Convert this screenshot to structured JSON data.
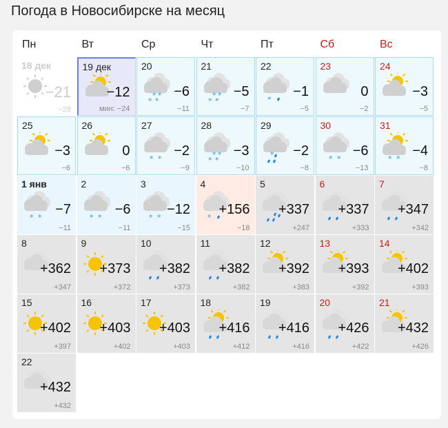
{
  "title": "Погода в Новосибирске на месяц",
  "weekdays": [
    {
      "label": "Пн",
      "weekend": false
    },
    {
      "label": "Вт",
      "weekend": false
    },
    {
      "label": "Ср",
      "weekend": false
    },
    {
      "label": "Чт",
      "weekend": false
    },
    {
      "label": "Пт",
      "weekend": false
    },
    {
      "label": "Сб",
      "weekend": true
    },
    {
      "label": "Вс",
      "weekend": true
    }
  ],
  "colors": {
    "weekend": "#c81c1c",
    "sun": "#f6c400",
    "snow": "#2e9df0",
    "rain": "#1e88e5",
    "cloud": "#d0d0d0"
  },
  "days": [
    {
      "day": "18 дек",
      "icon": "sun",
      "precip": "",
      "temp": "−21",
      "min": "−28",
      "style": "past"
    },
    {
      "day": "19 дек",
      "icon": "suncloud",
      "precip": "",
      "temp": "−12",
      "min": "мин: −24",
      "style": "today"
    },
    {
      "day": "20",
      "icon": "cloud",
      "precip": "snow4",
      "temp": "−6",
      "min": "−11",
      "style": "blue"
    },
    {
      "day": "21",
      "icon": "cloud",
      "precip": "snow4",
      "temp": "−5",
      "min": "−7",
      "style": "blue"
    },
    {
      "day": "22",
      "icon": "cloud",
      "precip": "mix",
      "temp": "−1",
      "min": "−5",
      "style": "blue"
    },
    {
      "day": "23",
      "icon": "cloud",
      "precip": "",
      "temp": "0",
      "min": "−2",
      "style": "blue",
      "weekend": true
    },
    {
      "day": "24",
      "icon": "suncloud",
      "precip": "",
      "temp": "−3",
      "min": "−5",
      "style": "blue",
      "weekend": true
    },
    {
      "day": "25",
      "icon": "suncloud",
      "precip": "",
      "temp": "−3",
      "min": "−6",
      "style": "blue"
    },
    {
      "day": "26",
      "icon": "suncloud",
      "precip": "",
      "temp": "0",
      "min": "−6",
      "style": "blue"
    },
    {
      "day": "27",
      "icon": "cloud",
      "precip": "snow2",
      "temp": "−2",
      "min": "−9",
      "style": "blue"
    },
    {
      "day": "28",
      "icon": "cloud",
      "precip": "snow4",
      "temp": "−3",
      "min": "−10",
      "style": "blue"
    },
    {
      "day": "29",
      "icon": "cloud",
      "precip": "mix3",
      "temp": "−2",
      "min": "−8",
      "style": "blue"
    },
    {
      "day": "30",
      "icon": "cloud",
      "precip": "snow2",
      "temp": "−6",
      "min": "−13",
      "style": "blue",
      "weekend": true
    },
    {
      "day": "31",
      "icon": "suncloud",
      "precip": "snow2",
      "temp": "−4",
      "min": "−8",
      "style": "blue",
      "weekend": true
    },
    {
      "day": "1 янв",
      "icon": "cloud",
      "precip": "snow2",
      "temp": "−7",
      "min": "−11",
      "style": "lblue",
      "bold": true
    },
    {
      "day": "2",
      "icon": "cloud",
      "precip": "snow2",
      "temp": "−6",
      "min": "−11",
      "style": "lblue"
    },
    {
      "day": "3",
      "icon": "cloud",
      "precip": "snow2",
      "temp": "−12",
      "min": "−15",
      "style": "lblue"
    },
    {
      "day": "4",
      "icon": "cloud",
      "precip": "mix",
      "temp": "+156",
      "min": "−18",
      "style": "peach"
    },
    {
      "day": "5",
      "icon": "cloud",
      "precip": "rain3",
      "temp": "+337",
      "min": "+247",
      "style": "gray"
    },
    {
      "day": "6",
      "icon": "cloud",
      "precip": "rain2",
      "temp": "+337",
      "min": "+333",
      "style": "gray",
      "weekend": true
    },
    {
      "day": "7",
      "icon": "cloud",
      "precip": "rain2",
      "temp": "+347",
      "min": "+342",
      "style": "gray",
      "weekend": true
    },
    {
      "day": "8",
      "icon": "cloud",
      "precip": "",
      "temp": "+362",
      "min": "+347",
      "style": "gray"
    },
    {
      "day": "9",
      "icon": "sun",
      "precip": "",
      "temp": "+373",
      "min": "+372",
      "style": "gray"
    },
    {
      "day": "10",
      "icon": "cloud",
      "precip": "rain2",
      "temp": "+382",
      "min": "+373",
      "style": "gray"
    },
    {
      "day": "11",
      "icon": "cloud",
      "precip": "rain2",
      "temp": "+382",
      "min": "+382",
      "style": "gray"
    },
    {
      "day": "12",
      "icon": "suncloud",
      "precip": "",
      "temp": "+392",
      "min": "+383",
      "style": "gray"
    },
    {
      "day": "13",
      "icon": "suncloud",
      "precip": "",
      "temp": "+393",
      "min": "+392",
      "style": "gray",
      "weekend": true
    },
    {
      "day": "14",
      "icon": "suncloud",
      "precip": "",
      "temp": "+402",
      "min": "+393",
      "style": "gray",
      "weekend": true
    },
    {
      "day": "15",
      "icon": "sun",
      "precip": "",
      "temp": "+402",
      "min": "+397",
      "style": "gray"
    },
    {
      "day": "16",
      "icon": "sun",
      "precip": "",
      "temp": "+403",
      "min": "+402",
      "style": "gray"
    },
    {
      "day": "17",
      "icon": "sun",
      "precip": "",
      "temp": "+403",
      "min": "+403",
      "style": "gray"
    },
    {
      "day": "18",
      "icon": "suncloud",
      "precip": "rain2",
      "temp": "+416",
      "min": "+412",
      "style": "gray"
    },
    {
      "day": "19",
      "icon": "cloud",
      "precip": "rain2",
      "temp": "+416",
      "min": "+416",
      "style": "gray"
    },
    {
      "day": "20",
      "icon": "cloud",
      "precip": "rain2",
      "temp": "+426",
      "min": "+422",
      "style": "gray",
      "weekend": true
    },
    {
      "day": "21",
      "icon": "suncloud",
      "precip": "",
      "temp": "+432",
      "min": "+426",
      "style": "gray",
      "weekend": true
    },
    {
      "day": "22",
      "icon": "cloud",
      "precip": "",
      "temp": "+432",
      "min": "+432",
      "style": "gray"
    }
  ]
}
